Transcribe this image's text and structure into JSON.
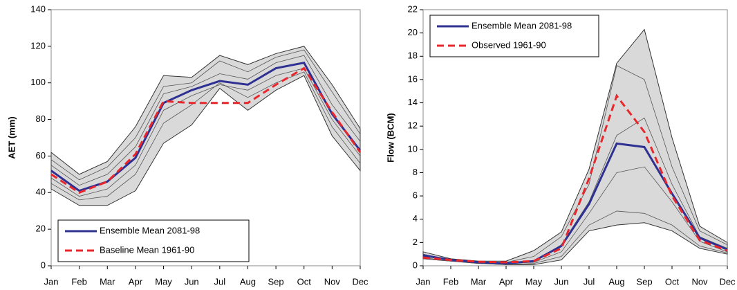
{
  "chart_data": [
    {
      "type": "line",
      "y_label": "AET (mm)",
      "categories": [
        "Jan",
        "Feb",
        "Mar",
        "Apr",
        "May",
        "Jun",
        "Jul",
        "Aug",
        "Sep",
        "Oct",
        "Nov",
        "Dec"
      ],
      "ylim": [
        0,
        140
      ],
      "yticks": [
        0,
        20,
        40,
        60,
        80,
        100,
        120,
        140
      ],
      "range": {
        "color": "#d9d9d9",
        "upper": [
          62,
          50,
          57,
          76,
          104,
          103,
          115,
          110,
          116,
          120,
          99,
          75
        ],
        "lower": [
          42,
          33,
          33,
          41,
          67,
          77,
          97,
          85,
          96,
          104,
          71,
          52
        ]
      },
      "members_color": "#555555",
      "members": [
        [
          58,
          47,
          54,
          70,
          98,
          100,
          112,
          106,
          114,
          118,
          95,
          72
        ],
        [
          48,
          38,
          42,
          55,
          85,
          93,
          99,
          96,
          104,
          108,
          80,
          60
        ],
        [
          45,
          36,
          38,
          50,
          78,
          88,
          100,
          92,
          100,
          106,
          76,
          56
        ],
        [
          55,
          44,
          50,
          65,
          94,
          98,
          105,
          102,
          111,
          115,
          88,
          68
        ]
      ],
      "legend": "lower-left",
      "series": [
        {
          "name": "Ensemble Mean 2081-98",
          "color": "#2e3192",
          "style": "solid",
          "values": [
            52,
            41,
            46,
            59,
            89,
            96,
            101,
            99,
            108,
            111,
            83,
            63
          ]
        },
        {
          "name": "Baseline Mean 1961-90",
          "color": "#e8262c",
          "style": "dashed",
          "values": [
            50,
            40,
            46,
            61,
            90,
            89,
            89,
            89,
            99,
            108,
            84,
            62
          ]
        }
      ]
    },
    {
      "type": "line",
      "y_label": "Flow (BCM)",
      "categories": [
        "Jan",
        "Feb",
        "Mar",
        "Apr",
        "May",
        "Jun",
        "Jul",
        "Aug",
        "Sep",
        "Oct",
        "Nov",
        "Dec"
      ],
      "ylim": [
        0,
        22
      ],
      "yticks": [
        0,
        2,
        4,
        6,
        8,
        10,
        12,
        14,
        16,
        18,
        20,
        22
      ],
      "range": {
        "color": "#d9d9d9",
        "upper": [
          1.2,
          0.6,
          0.4,
          0.4,
          1.3,
          2.9,
          8.3,
          17.4,
          20.3,
          11,
          3.4,
          2.0
        ],
        "lower": [
          0.6,
          0.4,
          0.2,
          0.1,
          0.1,
          0.5,
          3.0,
          3.5,
          3.7,
          3.0,
          1.5,
          1.0
        ]
      },
      "members_color": "#555555",
      "members": [
        [
          1.0,
          0.5,
          0.3,
          0.3,
          0.8,
          2.5,
          7.0,
          17.2,
          16.0,
          8.5,
          3.0,
          1.8
        ],
        [
          0.8,
          0.5,
          0.3,
          0.2,
          0.4,
          1.8,
          5.5,
          11.2,
          12.7,
          7.0,
          2.5,
          1.5
        ],
        [
          0.7,
          0.4,
          0.3,
          0.2,
          0.3,
          1.2,
          4.5,
          8.0,
          8.5,
          5.5,
          2.1,
          1.2
        ],
        [
          0.6,
          0.4,
          0.2,
          0.1,
          0.2,
          0.8,
          3.5,
          4.7,
          4.5,
          3.5,
          1.7,
          1.1
        ]
      ],
      "legend": "upper-left",
      "series": [
        {
          "name": "Ensemble Mean 2081-98",
          "color": "#2e3192",
          "style": "solid",
          "values": [
            0.9,
            0.5,
            0.3,
            0.2,
            0.4,
            1.7,
            5.3,
            10.5,
            10.2,
            6.2,
            2.4,
            1.4
          ]
        },
        {
          "name": "Observed 1961-90",
          "color": "#e8262c",
          "style": "dashed",
          "values": [
            0.7,
            0.5,
            0.35,
            0.3,
            0.4,
            1.5,
            7.5,
            14.6,
            11.5,
            6.0,
            2.2,
            1.3
          ]
        }
      ]
    }
  ]
}
